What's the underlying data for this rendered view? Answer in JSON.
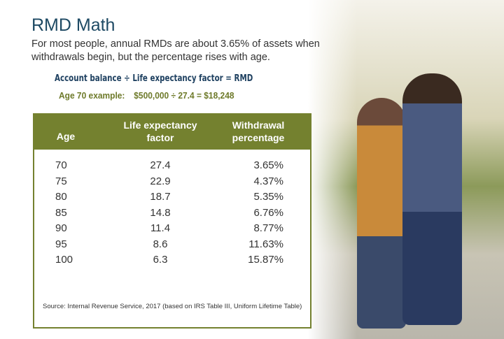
{
  "title": "RMD Math",
  "intro": "For most people, annual RMDs are about 3.65% of assets when withdrawals begin, but the percentage rises with age.",
  "formula": "Account balance ÷ Life expectancy factor = RMD",
  "example": {
    "label": "Age 70 example:",
    "calc": "$500,000 ÷ 27.4 = $18,248"
  },
  "table": {
    "headers": [
      "Age",
      "Life expectancy factor",
      "Withdrawal percentage"
    ],
    "rows": [
      [
        "70",
        "27.4",
        "3.65%"
      ],
      [
        "75",
        "22.9",
        "4.37%"
      ],
      [
        "80",
        "18.7",
        "5.35%"
      ],
      [
        "85",
        "14.8",
        "6.76%"
      ],
      [
        "90",
        "11.4",
        "8.77%"
      ],
      [
        "95",
        "8.6",
        "11.63%"
      ],
      [
        "100",
        "6.3",
        "15.87%"
      ]
    ],
    "source": "Source: Internal Revenue Service, 2017 (based on IRS Table III, Uniform Lifetime Table)"
  },
  "colors": {
    "title": "#1e4a64",
    "accent": "#74812f"
  }
}
